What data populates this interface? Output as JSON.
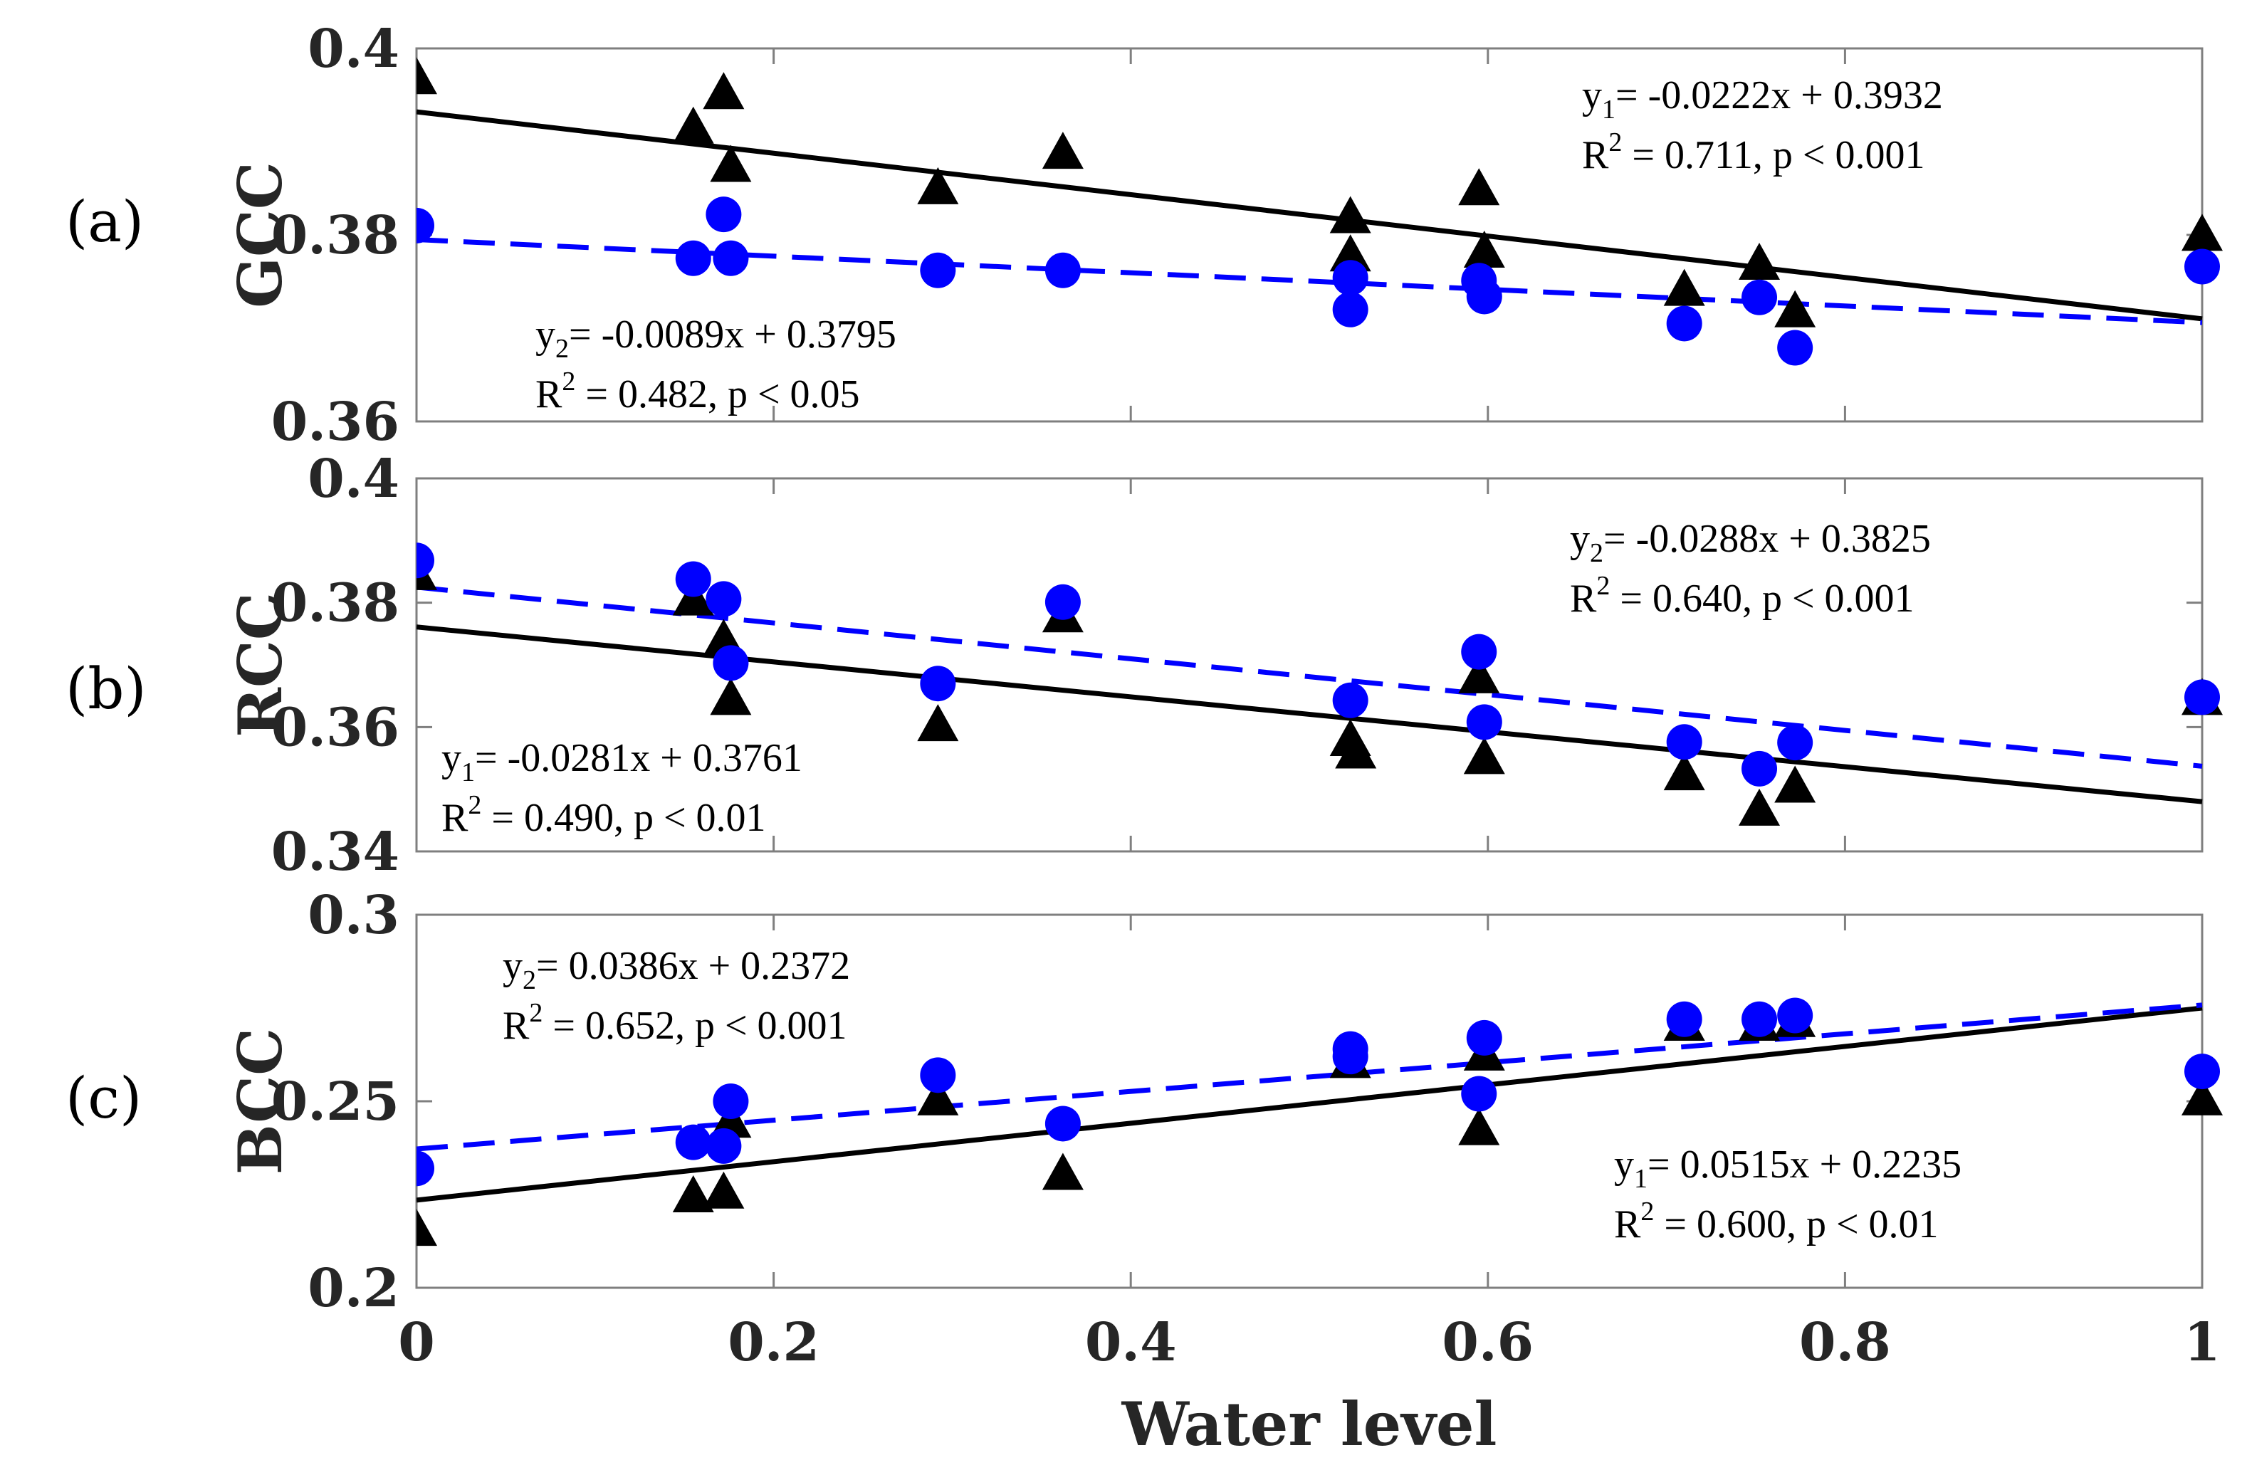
{
  "chart_data": [
    {
      "type": "scatter",
      "panel_label": "(a)",
      "ylabel": "GCC",
      "ylim": [
        0.36,
        0.4
      ],
      "yticks": [
        "0.36",
        "0.38",
        "0.4"
      ],
      "xlim": [
        0,
        1
      ],
      "series": [
        {
          "marker": "triangle",
          "color": "#000000",
          "line_style": "solid",
          "x": [
            0,
            0.155,
            0.172,
            0.176,
            0.292,
            0.362,
            0.523,
            0.523,
            0.595,
            0.598,
            0.71,
            0.752,
            0.772,
            1.0
          ],
          "y": [
            0.3966,
            0.3913,
            0.395,
            0.3872,
            0.3848,
            0.3886,
            0.3817,
            0.3776,
            0.3847,
            0.378,
            0.3739,
            0.3767,
            0.3716,
            0.3798
          ],
          "fit": {
            "slope": -0.0222,
            "intercept": 0.3932
          }
        },
        {
          "marker": "circle",
          "color": "#0000ff",
          "line_style": "dashed",
          "x": [
            0,
            0.155,
            0.172,
            0.176,
            0.292,
            0.362,
            0.523,
            0.523,
            0.595,
            0.598,
            0.71,
            0.752,
            0.772,
            1.0
          ],
          "y": [
            0.381,
            0.3775,
            0.3822,
            0.3775,
            0.3762,
            0.3762,
            0.3754,
            0.372,
            0.3751,
            0.3734,
            0.3705,
            0.3733,
            0.3679,
            0.3766
          ],
          "fit": {
            "slope": -0.0089,
            "intercept": 0.3795
          }
        }
      ],
      "annotations": [
        {
          "y_base": "y",
          "sub": "1",
          "rest": "=  -0.0222x + 0.3932",
          "r_pre": "R",
          "r_sup": "2",
          "r_rest": " = 0.711, p < 0.001"
        },
        {
          "y_base": "y",
          "sub": "2",
          "rest": "= -0.0089x + 0.3795",
          "r_pre": "R",
          "r_sup": "2",
          "r_rest": " = 0.482, p < 0.05"
        }
      ]
    },
    {
      "type": "scatter",
      "panel_label": "(b)",
      "ylabel": "RCC",
      "ylim": [
        0.34,
        0.4
      ],
      "yticks": [
        "0.34",
        "0.36",
        "0.38",
        "0.4"
      ],
      "xlim": [
        0,
        1
      ],
      "series": [
        {
          "marker": "triangle",
          "color": "#000000",
          "line_style": "solid",
          "x": [
            0,
            0.155,
            0.172,
            0.176,
            0.292,
            0.362,
            0.523,
            0.526,
            0.595,
            0.598,
            0.71,
            0.752,
            0.772,
            1.0
          ],
          "y": [
            0.3843,
            0.3802,
            0.3737,
            0.3642,
            0.36,
            0.3775,
            0.3576,
            0.3556,
            0.3677,
            0.3547,
            0.3521,
            0.3464,
            0.3501,
            0.3642
          ],
          "fit": {
            "slope": -0.0281,
            "intercept": 0.3761
          }
        },
        {
          "marker": "circle",
          "color": "#0000ff",
          "line_style": "dashed",
          "x": [
            0,
            0.155,
            0.172,
            0.176,
            0.292,
            0.362,
            0.523,
            0.595,
            0.598,
            0.71,
            0.752,
            0.772,
            1.0
          ],
          "y": [
            0.3868,
            0.3838,
            0.3806,
            0.3703,
            0.367,
            0.3801,
            0.3643,
            0.3721,
            0.3608,
            0.3576,
            0.3533,
            0.3575,
            0.3648
          ],
          "fit": {
            "slope": -0.0288,
            "intercept": 0.3825
          }
        }
      ],
      "annotations": [
        {
          "y_base": "y",
          "sub": "2",
          "rest": "= -0.0288x + 0.3825",
          "r_pre": "R",
          "r_sup": "2",
          "r_rest": " = 0.640, p < 0.001"
        },
        {
          "y_base": "y",
          "sub": "1",
          "rest": "=  -0.0281x +  0.3761",
          "r_pre": "R",
          "r_sup": "2",
          "r_rest": " = 0.490, p < 0.01"
        }
      ]
    },
    {
      "type": "scatter",
      "panel_label": "(c)",
      "ylabel": "BCC",
      "ylim": [
        0.2,
        0.3
      ],
      "yticks": [
        "0.2",
        "0.25",
        "0.3"
      ],
      "xlim": [
        0,
        1
      ],
      "xticks": [
        "0",
        "0.2",
        "0.4",
        "0.6",
        "0.8",
        "1"
      ],
      "xlabel": "Water level",
      "series": [
        {
          "marker": "triangle",
          "color": "#000000",
          "line_style": "solid",
          "x": [
            0,
            0.155,
            0.172,
            0.176,
            0.292,
            0.362,
            0.523,
            0.595,
            0.598,
            0.71,
            0.752,
            0.772,
            1.0
          ],
          "y": [
            0.215,
            0.224,
            0.225,
            0.244,
            0.25,
            0.23,
            0.26,
            0.242,
            0.262,
            0.27,
            0.27,
            0.271,
            0.25
          ],
          "fit": {
            "slope": 0.0515,
            "intercept": 0.2235
          }
        },
        {
          "marker": "circle",
          "color": "#0000ff",
          "line_style": "dashed",
          "x": [
            0,
            0.155,
            0.172,
            0.176,
            0.292,
            0.362,
            0.523,
            0.523,
            0.595,
            0.598,
            0.71,
            0.752,
            0.772,
            1.0
          ],
          "y": [
            0.232,
            0.239,
            0.238,
            0.25,
            0.257,
            0.244,
            0.264,
            0.262,
            0.252,
            0.267,
            0.272,
            0.272,
            0.273,
            0.258
          ],
          "fit": {
            "slope": 0.0386,
            "intercept": 0.2372
          }
        }
      ],
      "annotations": [
        {
          "y_base": "y",
          "sub": "2",
          "rest": "=   0.0386x + 0.2372",
          "r_pre": "R",
          "r_sup": "2",
          "r_rest": " = 0.652, p < 0.001"
        },
        {
          "y_base": "y",
          "sub": "1",
          "rest": "= 0.0515x + 0.2235",
          "r_pre": "R",
          "r_sup": "2",
          "r_rest": " = 0.600, p < 0.01"
        }
      ]
    }
  ]
}
